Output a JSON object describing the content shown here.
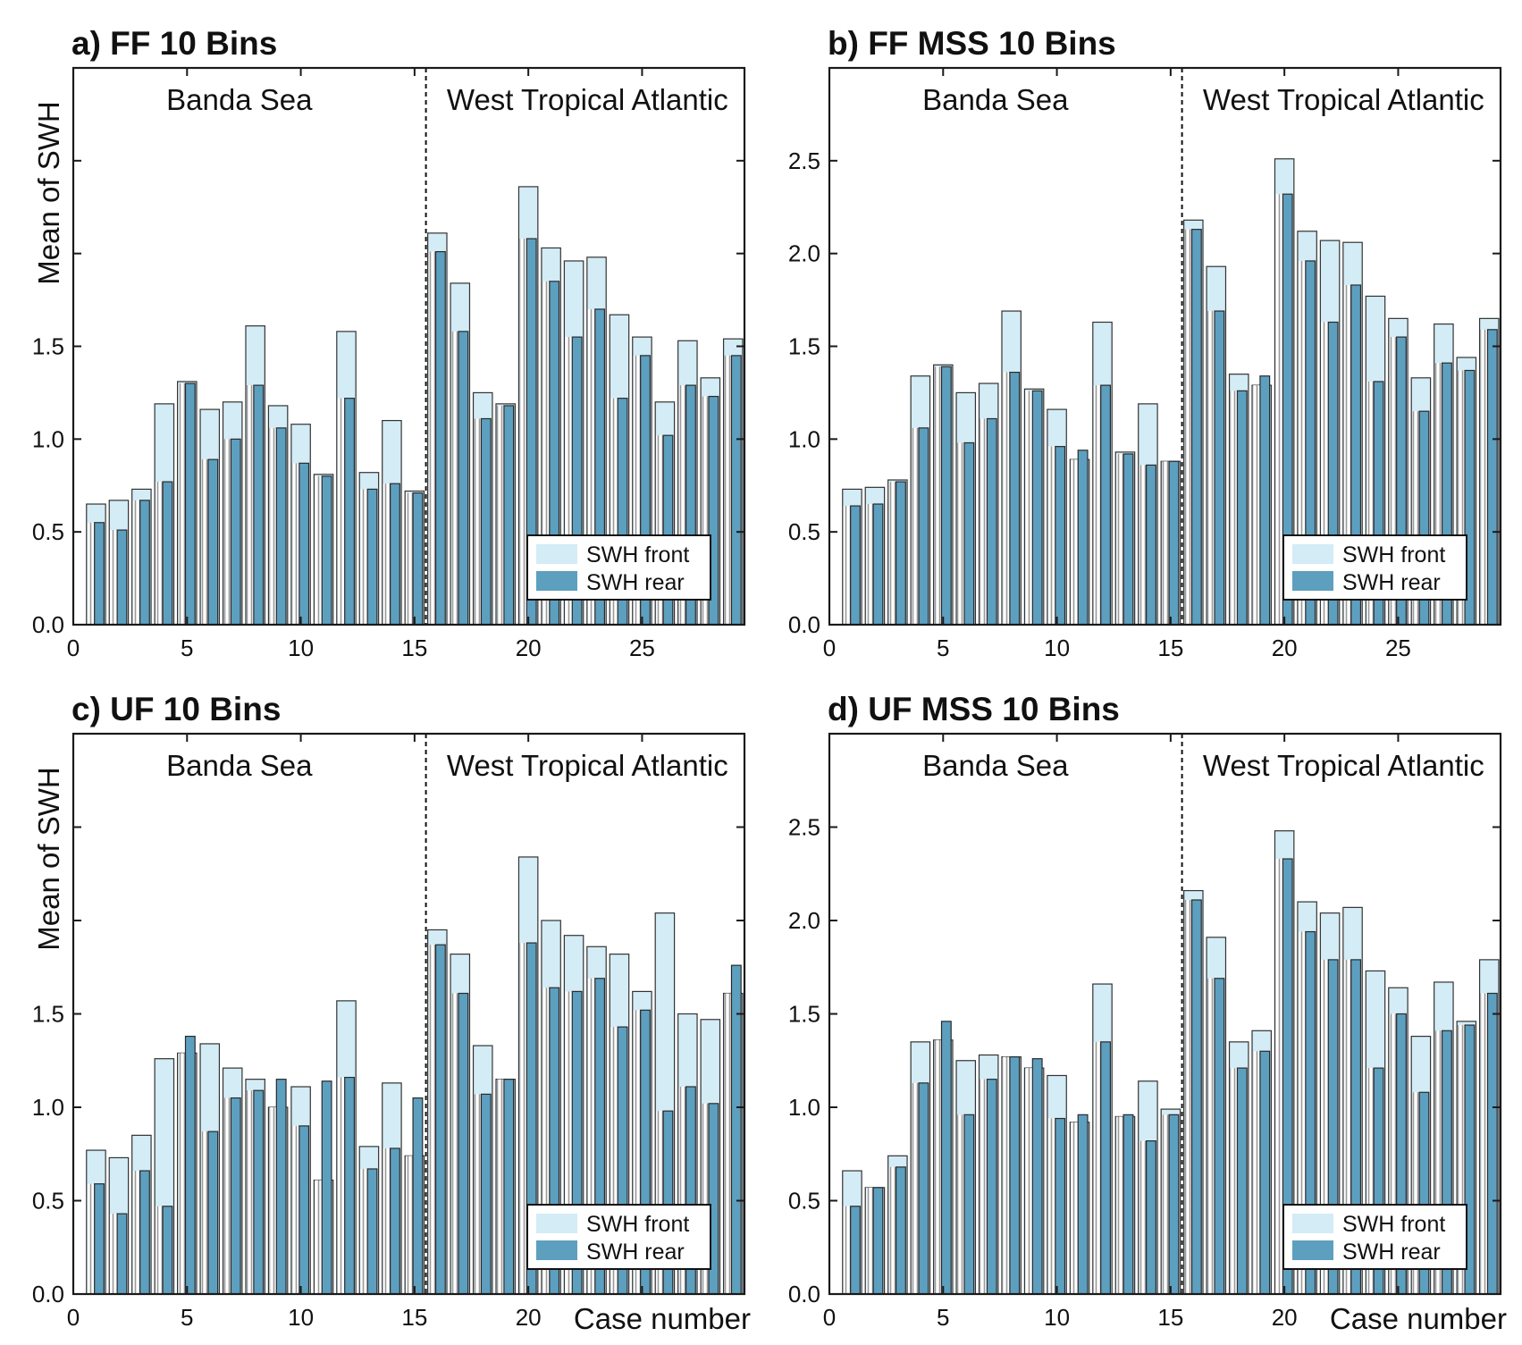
{
  "figure": {
    "colors": {
      "front": "#d3ecf6",
      "rear": "#5d9fbf",
      "hatch": "#9a9a9a",
      "axis": "#1a1a1a"
    },
    "legend": {
      "front_label": "SWH front",
      "rear_label": "SWH rear"
    }
  },
  "chart_data": [
    {
      "id": "a",
      "type": "bar",
      "title": "a) FF 10 Bins",
      "ylabel": "Mean of SWH",
      "xlabel": "",
      "xlim": [
        0,
        29.5
      ],
      "ylim": [
        0,
        3.0
      ],
      "xticks": [
        0,
        5,
        10,
        15,
        20,
        25
      ],
      "xtick_labels": [
        "0",
        "5",
        "10",
        "15",
        "20",
        "25"
      ],
      "yticks": [
        0.0,
        0.5,
        1.0,
        1.5
      ],
      "ytick_labels": [
        "0.0",
        "0.5",
        "1.0",
        "1.5"
      ],
      "regions": [
        "Banda Sea",
        "West Tropical Atlantic"
      ],
      "divider_x": 15.5,
      "legend_position": "lower-right",
      "series": [
        {
          "name": "SWH front",
          "values": [
            0.65,
            0.67,
            0.73,
            1.19,
            1.31,
            1.16,
            1.2,
            1.61,
            1.18,
            1.08,
            0.81,
            1.58,
            0.82,
            1.1,
            0.72,
            2.11,
            1.84,
            1.25,
            1.19,
            2.36,
            2.03,
            1.96,
            1.98,
            1.67,
            1.55,
            1.2,
            1.53,
            1.33,
            1.54
          ]
        },
        {
          "name": "SWH rear",
          "values": [
            0.55,
            0.51,
            0.67,
            0.77,
            1.3,
            0.89,
            1.0,
            1.29,
            1.06,
            0.87,
            0.8,
            1.22,
            0.73,
            0.76,
            0.71,
            2.01,
            1.58,
            1.11,
            1.18,
            2.08,
            1.85,
            1.55,
            1.7,
            1.22,
            1.45,
            1.02,
            1.29,
            1.23,
            1.45
          ]
        }
      ]
    },
    {
      "id": "b",
      "type": "bar",
      "title": "b) FF MSS 10 Bins",
      "ylabel": "",
      "xlabel": "",
      "xlim": [
        0,
        29.5
      ],
      "ylim": [
        0,
        3.0
      ],
      "xticks": [
        0,
        5,
        10,
        15,
        20,
        25
      ],
      "xtick_labels": [
        "0",
        "5",
        "10",
        "15",
        "20",
        "25"
      ],
      "yticks": [
        0.0,
        0.5,
        1.0,
        1.5,
        2.0,
        2.5
      ],
      "ytick_labels": [
        "0.0",
        "0.5",
        "1.0",
        "1.5",
        "2.0",
        "2.5"
      ],
      "regions": [
        "Banda Sea",
        "West Tropical Atlantic"
      ],
      "divider_x": 15.5,
      "legend_position": "lower-right",
      "series": [
        {
          "name": "SWH front",
          "values": [
            0.73,
            0.74,
            0.78,
            1.34,
            1.4,
            1.25,
            1.3,
            1.69,
            1.27,
            1.16,
            0.89,
            1.63,
            0.93,
            1.19,
            0.88,
            2.18,
            1.93,
            1.35,
            1.29,
            2.51,
            2.12,
            2.07,
            2.06,
            1.77,
            1.65,
            1.33,
            1.62,
            1.44,
            1.65
          ]
        },
        {
          "name": "SWH rear",
          "values": [
            0.64,
            0.65,
            0.77,
            1.06,
            1.39,
            0.98,
            1.11,
            1.36,
            1.26,
            0.96,
            0.94,
            1.29,
            0.92,
            0.86,
            0.88,
            2.13,
            1.69,
            1.26,
            1.34,
            2.32,
            1.96,
            1.63,
            1.83,
            1.31,
            1.55,
            1.15,
            1.41,
            1.37,
            1.59
          ]
        }
      ]
    },
    {
      "id": "c",
      "type": "bar",
      "title": "c) UF 10 Bins",
      "ylabel": "Mean of SWH",
      "xlabel": "Case number",
      "xlim": [
        0,
        29.5
      ],
      "ylim": [
        0,
        3.0
      ],
      "xticks": [
        0,
        5,
        10,
        15,
        20
      ],
      "xtick_labels": [
        "0",
        "5",
        "10",
        "15",
        "20"
      ],
      "yticks": [
        0.0,
        0.5,
        1.0,
        1.5
      ],
      "ytick_labels": [
        "0.0",
        "0.5",
        "1.0",
        "1.5"
      ],
      "regions": [
        "Banda Sea",
        "West Tropical Atlantic"
      ],
      "divider_x": 15.5,
      "legend_position": "lower-right",
      "series": [
        {
          "name": "SWH front",
          "values": [
            0.77,
            0.73,
            0.85,
            1.26,
            1.29,
            1.34,
            1.21,
            1.15,
            1.0,
            1.11,
            0.61,
            1.57,
            0.79,
            1.13,
            0.74,
            1.95,
            1.82,
            1.33,
            1.15,
            2.34,
            2.0,
            1.92,
            1.86,
            1.82,
            1.62,
            2.04,
            1.5,
            1.47,
            1.61
          ]
        },
        {
          "name": "SWH rear",
          "values": [
            0.59,
            0.43,
            0.66,
            0.47,
            1.38,
            0.87,
            1.05,
            1.09,
            1.15,
            0.9,
            1.14,
            1.16,
            0.67,
            0.78,
            1.05,
            1.87,
            1.61,
            1.07,
            1.15,
            1.88,
            1.64,
            1.62,
            1.69,
            1.43,
            1.52,
            0.98,
            1.11,
            1.02,
            1.76
          ]
        }
      ]
    },
    {
      "id": "d",
      "type": "bar",
      "title": "d) UF MSS 10 Bins",
      "ylabel": "",
      "xlabel": "Case number",
      "xlim": [
        0,
        29.5
      ],
      "ylim": [
        0,
        3.0
      ],
      "xticks": [
        0,
        5,
        10,
        15,
        20
      ],
      "xtick_labels": [
        "0",
        "5",
        "10",
        "15",
        "20"
      ],
      "yticks": [
        0.0,
        0.5,
        1.0,
        1.5,
        2.0,
        2.5
      ],
      "ytick_labels": [
        "0.0",
        "0.5",
        "1.0",
        "1.5",
        "2.0",
        "2.5"
      ],
      "regions": [
        "Banda Sea",
        "West Tropical Atlantic"
      ],
      "divider_x": 15.5,
      "legend_position": "lower-right",
      "series": [
        {
          "name": "SWH front",
          "values": [
            0.66,
            0.57,
            0.74,
            1.35,
            1.36,
            1.25,
            1.28,
            1.27,
            1.21,
            1.17,
            0.92,
            1.66,
            0.95,
            1.14,
            0.99,
            2.16,
            1.91,
            1.35,
            1.41,
            2.48,
            2.1,
            2.04,
            2.07,
            1.73,
            1.64,
            1.38,
            1.67,
            1.46,
            1.79
          ]
        },
        {
          "name": "SWH rear",
          "values": [
            0.47,
            0.57,
            0.68,
            1.13,
            1.46,
            0.96,
            1.15,
            1.27,
            1.26,
            0.94,
            0.96,
            1.35,
            0.96,
            0.82,
            0.96,
            2.11,
            1.69,
            1.21,
            1.3,
            2.33,
            1.94,
            1.79,
            1.79,
            1.21,
            1.5,
            1.08,
            1.41,
            1.44,
            1.61
          ]
        }
      ]
    }
  ]
}
